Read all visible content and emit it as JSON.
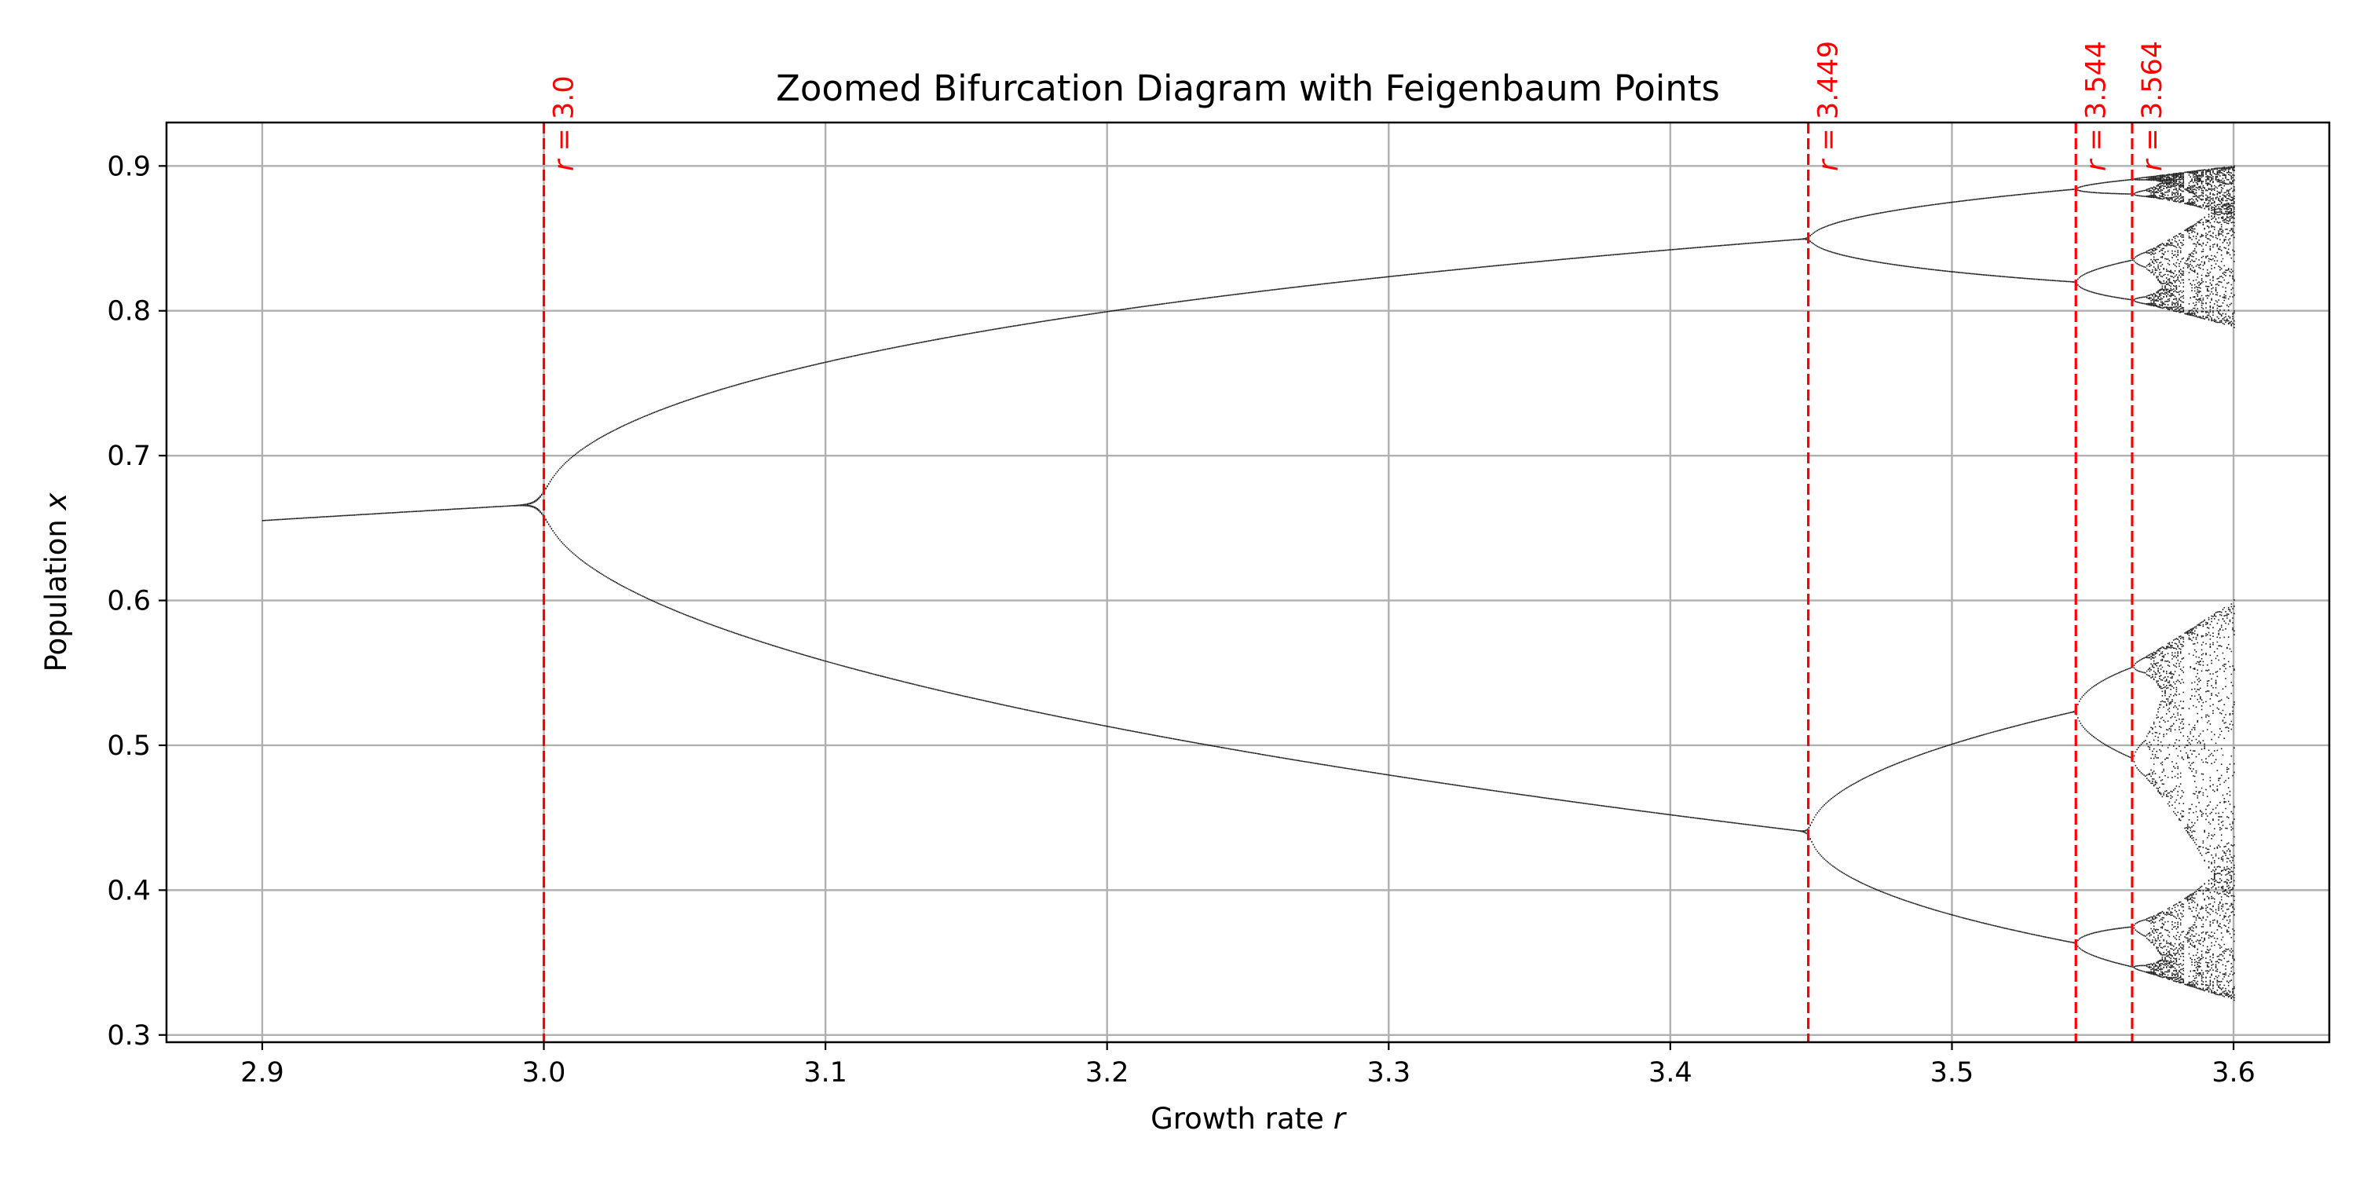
{
  "chart_data": {
    "type": "scatter",
    "title": "Zoomed Bifurcation Diagram with Feigenbaum Points",
    "xlabel_text": "Growth rate",
    "xlabel_var": "r",
    "ylabel_text": "Population",
    "ylabel_var": "x",
    "xlim": [
      2.866,
      3.634
    ],
    "ylim": [
      0.295,
      0.93
    ],
    "xticks": [
      "2.9",
      "3.0",
      "3.1",
      "3.2",
      "3.3",
      "3.4",
      "3.5",
      "3.6"
    ],
    "yticks": [
      "0.3",
      "0.4",
      "0.5",
      "0.6",
      "0.7",
      "0.8",
      "0.9"
    ],
    "grid": true,
    "data_range_r": [
      2.9,
      3.6
    ],
    "map": "logistic x_{n+1} = r·x_n·(1 − x_n)",
    "point_color": "#000000",
    "line_color": "#ff0000",
    "feigenbaum_points": [
      {
        "r": 3.0,
        "prefix": "r",
        "label": " = 3.0"
      },
      {
        "r": 3.449,
        "prefix": "r",
        "label": " = 3.449"
      },
      {
        "r": 3.544,
        "prefix": "r",
        "label": " = 3.544"
      },
      {
        "r": 3.564,
        "prefix": "r",
        "label": " = 3.564"
      }
    ]
  }
}
